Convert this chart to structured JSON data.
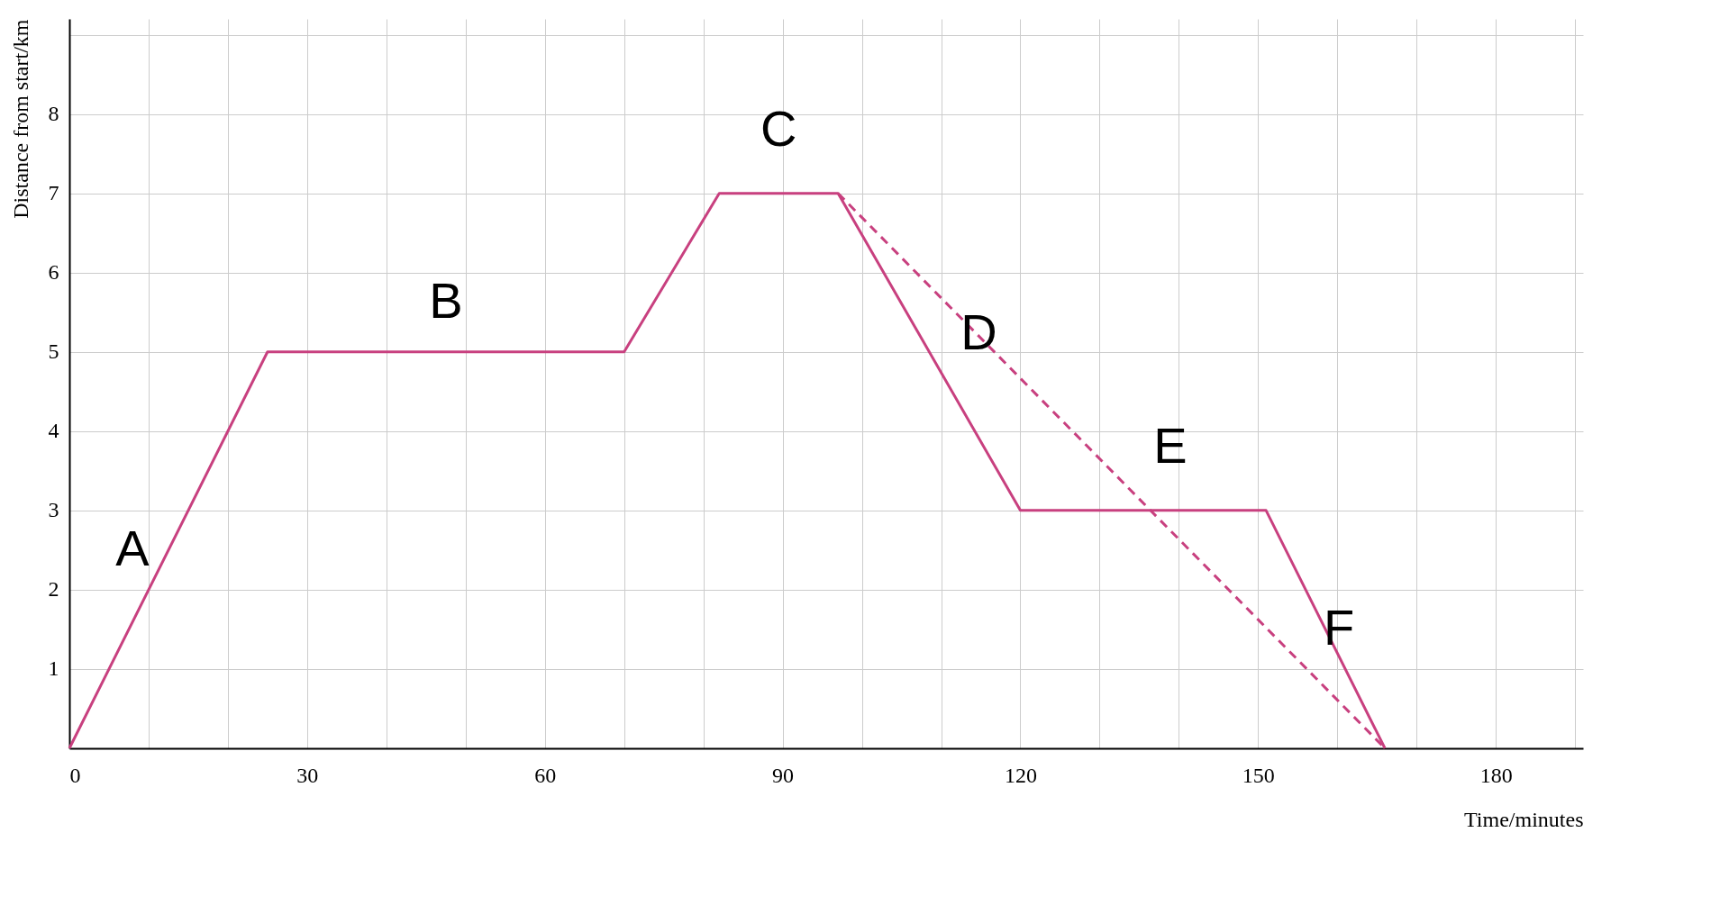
{
  "chart_data": {
    "type": "line",
    "xlabel": "Time/minutes",
    "ylabel": "Distance from start/km",
    "xlim": [
      0,
      191
    ],
    "ylim": [
      0,
      9.2
    ],
    "xticks": [
      0,
      {
        "value": 10,
        "label": null
      },
      {
        "value": 20,
        "label": null
      },
      30,
      {
        "value": 40,
        "label": null
      },
      {
        "value": 50,
        "label": null
      },
      60,
      {
        "value": 70,
        "label": null
      },
      {
        "value": 80,
        "label": null
      },
      90,
      {
        "value": 100,
        "label": null
      },
      {
        "value": 110,
        "label": null
      },
      120,
      {
        "value": 130,
        "label": null
      },
      {
        "value": 140,
        "label": null
      },
      150,
      {
        "value": 160,
        "label": null
      },
      {
        "value": 170,
        "label": null
      },
      180,
      {
        "value": 190,
        "label": null
      }
    ],
    "yticks": [
      1,
      2,
      3,
      4,
      5,
      6,
      7,
      8,
      {
        "value": 9,
        "label": null
      }
    ],
    "grid": true,
    "marker": "none",
    "series": [
      {
        "color": "#c8407f",
        "line_style": "solid",
        "x": [
          0,
          25,
          70,
          82,
          97,
          120,
          151,
          166
        ],
        "values": [
          0,
          5,
          5,
          7,
          7,
          3,
          3,
          0
        ]
      },
      {
        "color": "#c8407f",
        "line_style": "dashed",
        "x": [
          97,
          166
        ],
        "values": [
          7,
          0
        ]
      }
    ],
    "annotations": [
      "A",
      "B",
      "C",
      "D",
      "E",
      "F"
    ]
  }
}
